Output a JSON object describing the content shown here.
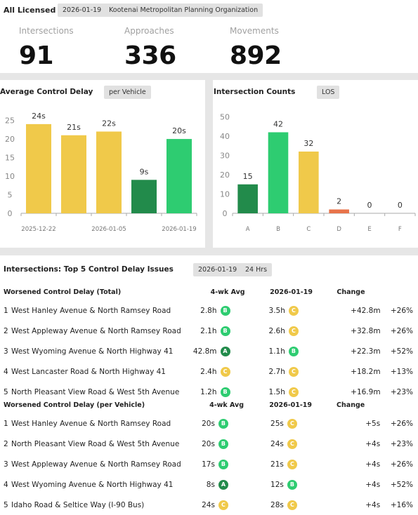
{
  "header": {
    "title": "All Licensed",
    "date_chip": "2026-01-19",
    "org_chip": "Kootenai Metropolitan Planning Organization"
  },
  "kpis": [
    {
      "label": "Intersections",
      "value": "91"
    },
    {
      "label": "Approaches",
      "value": "336"
    },
    {
      "label": "Movements",
      "value": "892"
    }
  ],
  "colors": {
    "A": "#228b4b",
    "B": "#2ecc71",
    "C": "#f0c94a",
    "D": "#e8734a",
    "E": "#e05555",
    "F": "#b23a3a"
  },
  "delay_panel": {
    "title": "Average Control Delay",
    "chip": "per Vehicle",
    "chart_data": {
      "type": "bar",
      "categories": [
        "2025-12-22",
        "",
        "2026-01-05",
        "",
        "2026-01-19"
      ],
      "tick_labels": [
        "2025-12-22",
        "2026-01-05",
        "2026-01-19"
      ],
      "values": [
        24,
        21,
        22,
        9,
        20
      ],
      "value_labels": [
        "24s",
        "21s",
        "22s",
        "9s",
        "20s"
      ],
      "bar_colors": [
        "#f0c94a",
        "#f0c94a",
        "#f0c94a",
        "#228b4b",
        "#2ecc71"
      ],
      "y_ticks": [
        0,
        5,
        10,
        15,
        20,
        25
      ],
      "ylim": [
        0,
        27
      ]
    }
  },
  "count_panel": {
    "title": "Intersection Counts",
    "chip": "LOS",
    "chart_data": {
      "type": "bar",
      "categories": [
        "A",
        "B",
        "C",
        "D",
        "E",
        "F"
      ],
      "values": [
        15,
        42,
        32,
        2,
        0,
        0
      ],
      "value_labels": [
        "15",
        "42",
        "32",
        "2",
        "0",
        "0"
      ],
      "bar_colors": [
        "#228b4b",
        "#2ecc71",
        "#f0c94a",
        "#e8734a",
        "#e05555",
        "#b23a3a"
      ],
      "y_ticks": [
        0,
        10,
        20,
        30,
        40,
        50
      ],
      "ylim": [
        0,
        52
      ]
    }
  },
  "top5": {
    "title": "Intersections: Top 5 Control Delay Issues",
    "date_chip": "2026-01-19",
    "range_chip": "24 Hrs",
    "total": {
      "heading": "Worsened Control Delay (Total)",
      "col_avg": "4-wk Avg",
      "col_date": "2026-01-19",
      "col_change": "Change",
      "rows": [
        {
          "idx": "1",
          "name": "West Hanley Avenue & North Ramsey Road",
          "avg": "2.8h",
          "avg_los": "B",
          "cur": "3.5h",
          "cur_los": "C",
          "change": "+42.8m",
          "pct": "+26%"
        },
        {
          "idx": "2",
          "name": "West Appleway Avenue & North Ramsey Road",
          "avg": "2.1h",
          "avg_los": "B",
          "cur": "2.6h",
          "cur_los": "C",
          "change": "+32.8m",
          "pct": "+26%"
        },
        {
          "idx": "3",
          "name": "West Wyoming Avenue & North Highway 41",
          "avg": "42.8m",
          "avg_los": "A",
          "cur": "1.1h",
          "cur_los": "B",
          "change": "+22.3m",
          "pct": "+52%"
        },
        {
          "idx": "4",
          "name": "West Lancaster Road & North Highway 41",
          "avg": "2.4h",
          "avg_los": "C",
          "cur": "2.7h",
          "cur_los": "C",
          "change": "+18.2m",
          "pct": "+13%"
        },
        {
          "idx": "5",
          "name": "North Pleasant View Road & West 5th Avenue",
          "avg": "1.2h",
          "avg_los": "B",
          "cur": "1.5h",
          "cur_los": "C",
          "change": "+16.9m",
          "pct": "+23%"
        }
      ]
    },
    "per_vehicle": {
      "heading": "Worsened Control Delay (per Vehicle)",
      "col_avg": "4-wk Avg",
      "col_date": "2026-01-19",
      "col_change": "Change",
      "rows": [
        {
          "idx": "1",
          "name": "West Hanley Avenue & North Ramsey Road",
          "avg": "20s",
          "avg_los": "B",
          "cur": "25s",
          "cur_los": "C",
          "change": "+5s",
          "pct": "+26%"
        },
        {
          "idx": "2",
          "name": "North Pleasant View Road & West 5th Avenue",
          "avg": "20s",
          "avg_los": "B",
          "cur": "24s",
          "cur_los": "C",
          "change": "+4s",
          "pct": "+23%"
        },
        {
          "idx": "3",
          "name": "West Appleway Avenue & North Ramsey Road",
          "avg": "17s",
          "avg_los": "B",
          "cur": "21s",
          "cur_los": "C",
          "change": "+4s",
          "pct": "+26%"
        },
        {
          "idx": "4",
          "name": "West Wyoming Avenue & North Highway 41",
          "avg": "8s",
          "avg_los": "A",
          "cur": "12s",
          "cur_los": "B",
          "change": "+4s",
          "pct": "+52%"
        },
        {
          "idx": "5",
          "name": "Idaho Road & Seltice Way (I-90 Bus)",
          "avg": "24s",
          "avg_los": "C",
          "cur": "28s",
          "cur_los": "C",
          "change": "+4s",
          "pct": "+16%"
        }
      ]
    }
  }
}
